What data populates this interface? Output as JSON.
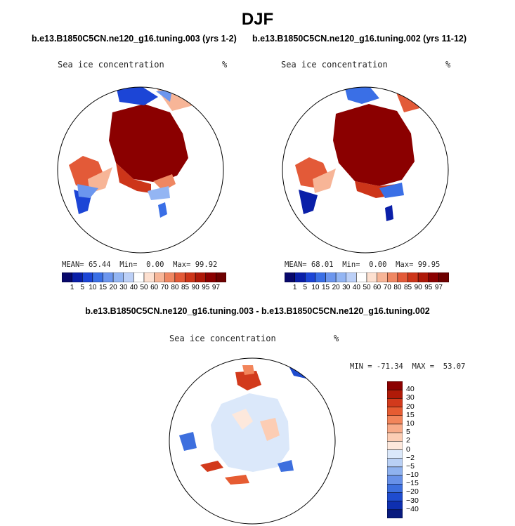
{
  "page": {
    "title": "DJF",
    "left_case": "b.e13.B1850C5CN.ne120_g16.tuning.003 (yrs 1-2)",
    "right_case": "b.e13.B1850C5CN.ne120_g16.tuning.002 (yrs 11-12)",
    "diff_title": "b.e13.B1850C5CN.ne120_g16.tuning.003 - b.e13.B1850C5CN.ne120_g16.tuning.002"
  },
  "chart_data": [
    {
      "type": "heatmap",
      "title": "Sea ice concentration",
      "units": "%",
      "stats": {
        "mean": "65.44",
        "min": "0.00",
        "max": "99.92"
      },
      "stats_labels": {
        "mean": "MEAN=",
        "min": "Min=",
        "max": "Max="
      },
      "colorbar": {
        "levels": [
          1,
          5,
          10,
          15,
          20,
          30,
          40,
          50,
          60,
          70,
          80,
          85,
          90,
          95,
          97
        ],
        "colors": [
          "#08086b",
          "#0a1fa8",
          "#1c45d6",
          "#3a6fe6",
          "#6c96ee",
          "#93b5f3",
          "#bcd0f7",
          "#ffffff",
          "#fde0d0",
          "#f7b597",
          "#ef8762",
          "#e35a38",
          "#cd3519",
          "#ae1808",
          "#8b0000",
          "#6e0000"
        ]
      }
    },
    {
      "type": "heatmap",
      "title": "Sea ice concentration",
      "units": "%",
      "stats": {
        "mean": "68.01",
        "min": "0.00",
        "max": "99.95"
      },
      "stats_labels": {
        "mean": "MEAN=",
        "min": "Min=",
        "max": "Max="
      },
      "colorbar": {
        "levels": [
          1,
          5,
          10,
          15,
          20,
          30,
          40,
          50,
          60,
          70,
          80,
          85,
          90,
          95,
          97
        ],
        "colors": [
          "#08086b",
          "#0a1fa8",
          "#1c45d6",
          "#3a6fe6",
          "#6c96ee",
          "#93b5f3",
          "#bcd0f7",
          "#ffffff",
          "#fde0d0",
          "#f7b597",
          "#ef8762",
          "#e35a38",
          "#cd3519",
          "#ae1808",
          "#8b0000",
          "#6e0000"
        ]
      }
    },
    {
      "type": "heatmap",
      "title": "Sea ice concentration",
      "units": "%",
      "stats": {
        "min": "-71.34",
        "max": "53.07",
        "text": "MIN = -71.34  MAX =  53.07"
      },
      "colorbar": {
        "levels": [
          "40",
          "30",
          "20",
          "15",
          "10",
          "5",
          "2",
          "0",
          "−2",
          "−5",
          "−10",
          "−15",
          "−20",
          "−30",
          "−40"
        ],
        "colors": [
          "#8b0000",
          "#b01a08",
          "#d23a1c",
          "#e65c32",
          "#f2855b",
          "#f8ab89",
          "#fccdb4",
          "#fde8dc",
          "#dbe8fa",
          "#b9d0f5",
          "#8fb2ef",
          "#6891e8",
          "#3d6fde",
          "#1f4ccf",
          "#0e2fb0",
          "#081a7e"
        ]
      }
    }
  ]
}
